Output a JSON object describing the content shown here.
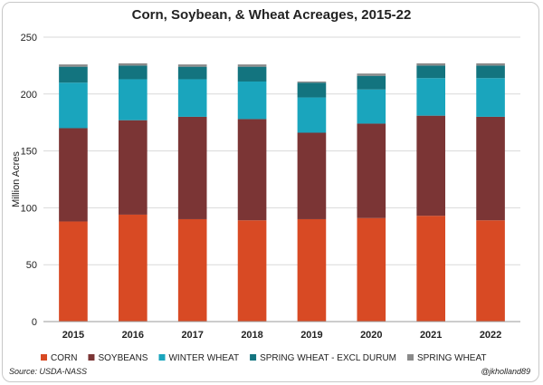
{
  "chart_data": {
    "type": "bar",
    "stacked": true,
    "title": "Corn, Soybean, & Wheat Acreages, 2015-22",
    "xlabel": "",
    "ylabel": "Million Acres",
    "ylim": [
      0,
      250
    ],
    "yticks": [
      0,
      50,
      100,
      150,
      200,
      250
    ],
    "grid": true,
    "legend_position": "bottom",
    "categories": [
      "2015",
      "2016",
      "2017",
      "2018",
      "2019",
      "2020",
      "2021",
      "2022"
    ],
    "series": [
      {
        "name": "CORN",
        "color": "#d84a24",
        "values": [
          88,
          94,
          90,
          89,
          90,
          91,
          93,
          89
        ]
      },
      {
        "name": "SOYBEANS",
        "color": "#7b3535",
        "values": [
          82,
          83,
          90,
          89,
          76,
          83,
          88,
          91
        ]
      },
      {
        "name": "WINTER WHEAT",
        "color": "#1aa5bd",
        "values": [
          40,
          36,
          33,
          33,
          31,
          30,
          33,
          34
        ]
      },
      {
        "name": "SPRING WHEAT - EXCL DURUM",
        "color": "#13747f",
        "values": [
          14,
          12,
          11,
          13,
          13,
          12,
          11,
          11
        ]
      },
      {
        "name": "SPRING WHEAT",
        "color": "#8a8a8a",
        "values": [
          2,
          2,
          2,
          2,
          1,
          2,
          2,
          2
        ]
      }
    ]
  },
  "footer": {
    "source": "Source: USDA-NASS",
    "credit": "@jkholland89"
  }
}
